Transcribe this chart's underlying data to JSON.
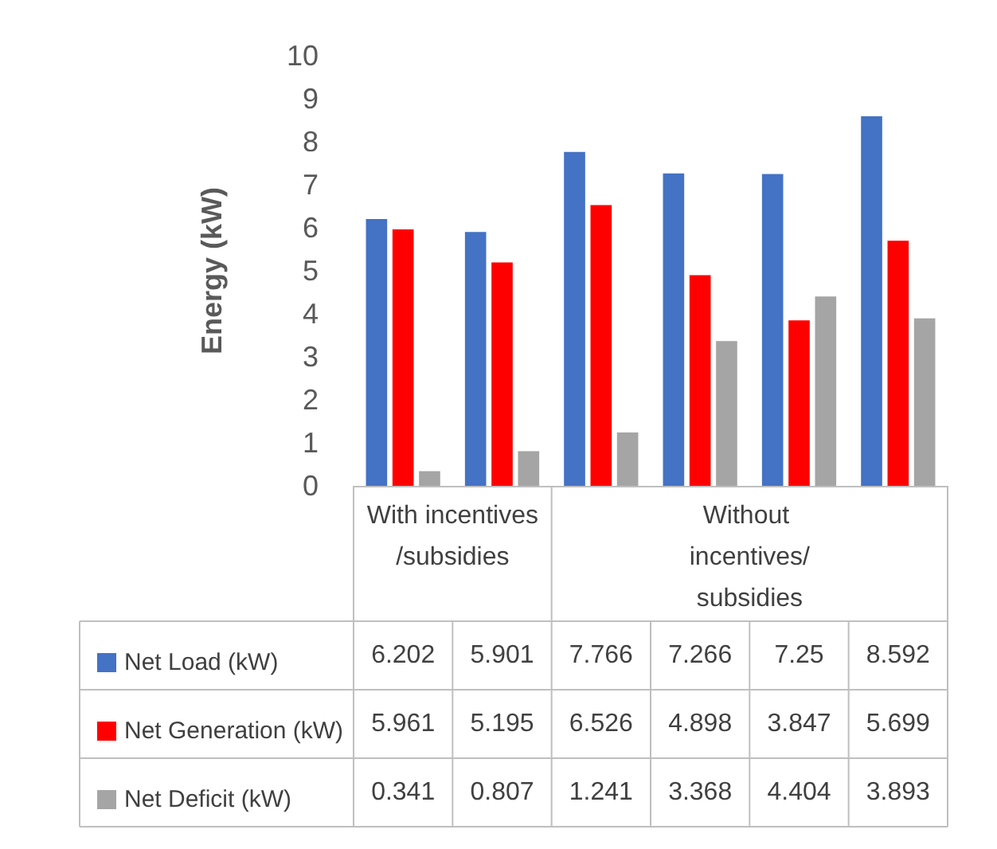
{
  "chart_data": {
    "type": "bar",
    "ylabel": "Energy (kW)",
    "categories": [
      null,
      null,
      null,
      null,
      null,
      null
    ],
    "annotations": [
      "With incentives/subsidies",
      "Without incentives/subsidies"
    ],
    "series": [
      {
        "name": "Net Load (kW)",
        "color": "#4472c4",
        "values": [
          6.202,
          5.901,
          7.766,
          7.266,
          7.25,
          8.592
        ]
      },
      {
        "name": "Net Generation (kW)",
        "color": "#ff0000",
        "values": [
          5.961,
          5.195,
          6.526,
          4.898,
          3.847,
          5.699
        ]
      },
      {
        "name": "Net Deficit (kW)",
        "color": "#a5a5a5",
        "values": [
          0.341,
          0.807,
          1.241,
          3.368,
          4.404,
          3.893
        ]
      }
    ],
    "ylim": [
      0,
      10
    ],
    "yticks": [
      0,
      1,
      2,
      3,
      4,
      5,
      6,
      7,
      8,
      9,
      10
    ],
    "grid": false,
    "legend": "bottom",
    "data_labels": true
  }
}
